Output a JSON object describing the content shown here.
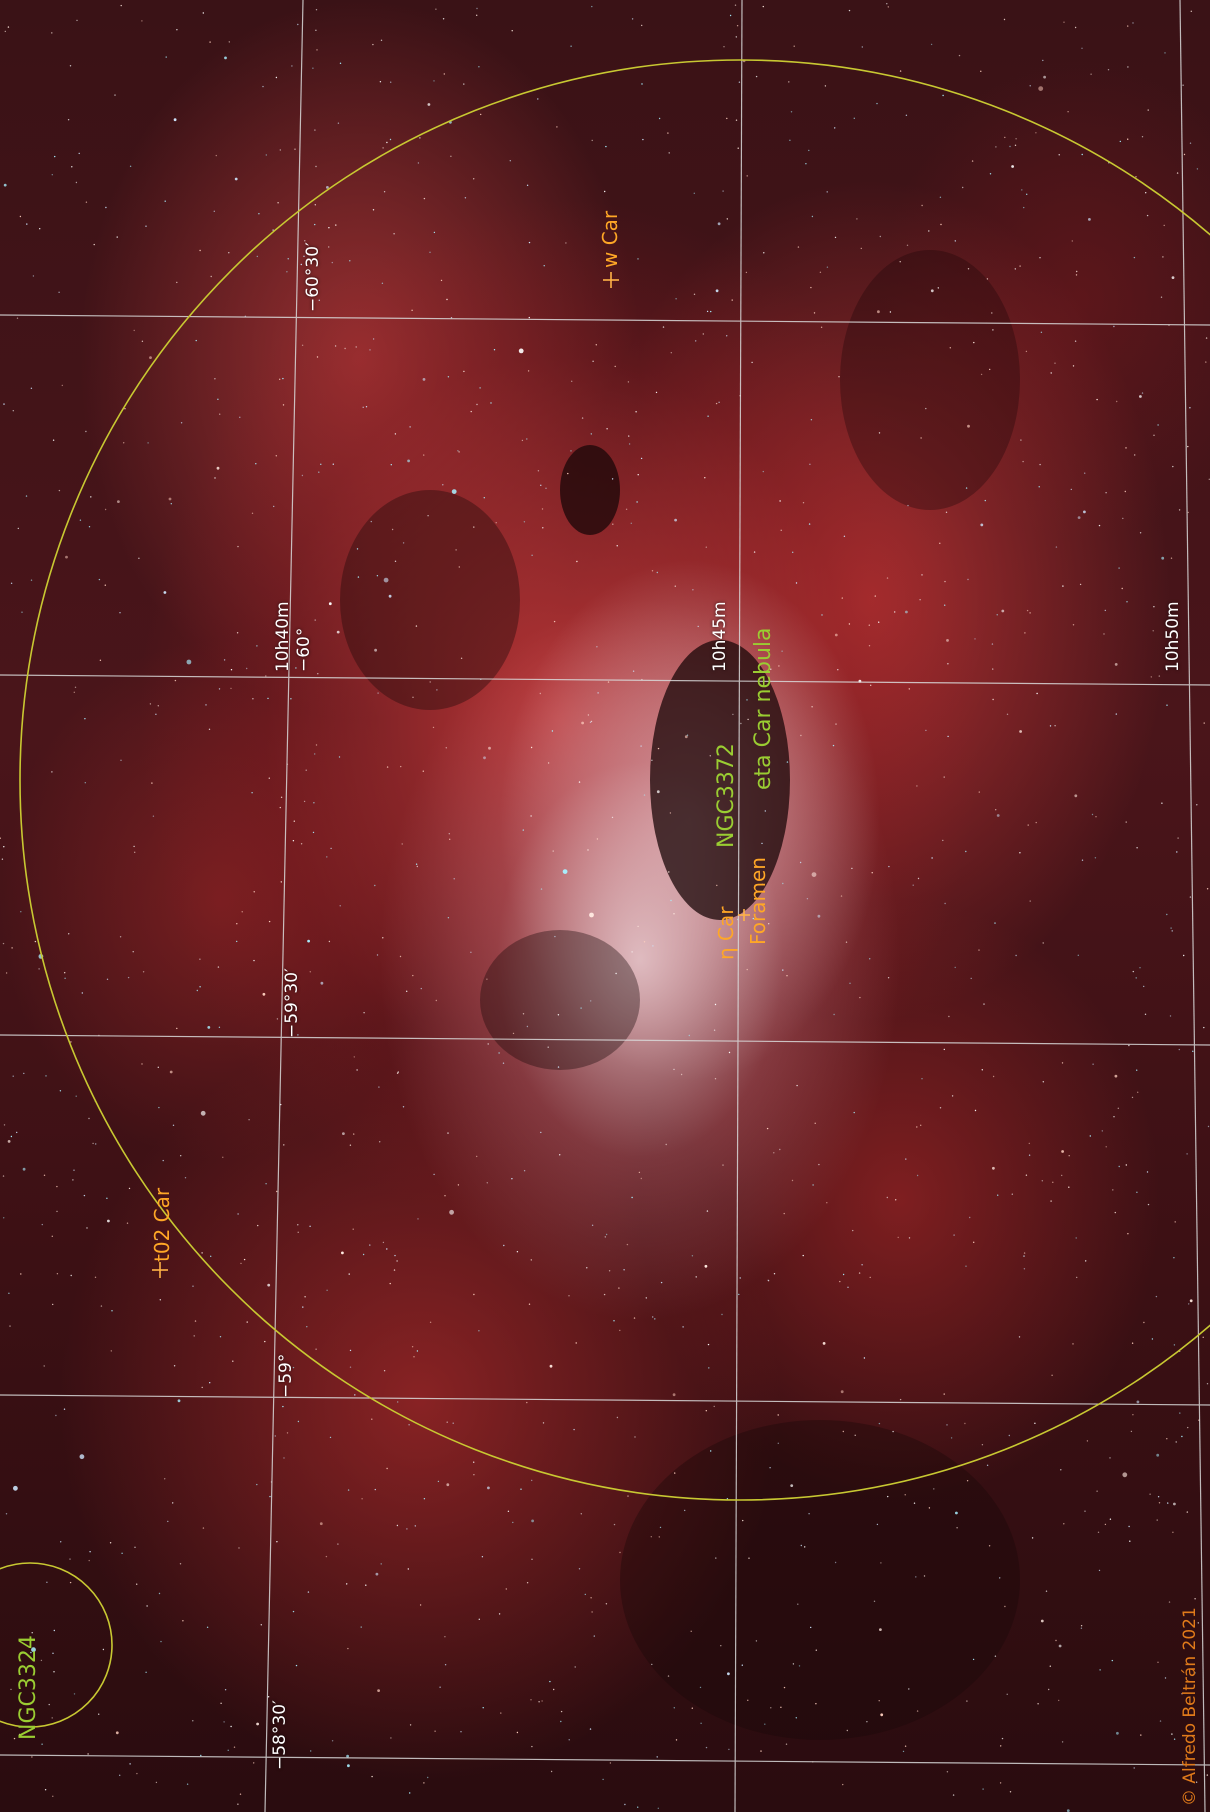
{
  "image": {
    "overlay_colors": {
      "grid": "#d9d9d9",
      "circle": "#c8c832",
      "object_label": "#9acd32",
      "star_label": "#ffa726"
    }
  },
  "grid_labels": {
    "ra_10h40m": "10h40m",
    "ra_10h45m": "10h45m",
    "ra_10h50m": "10h50m",
    "dec_m60": "−60°",
    "dec_m60_30": "−60°30′",
    "dec_m59_30": "−59°30′",
    "dec_m59": "−59°",
    "dec_m58_30": "−58°30′"
  },
  "objects": {
    "ngc3324": "NGC3324",
    "ngc3372": "NGC3372",
    "eta_car_nebula": "eta Car nebula",
    "eta_car": "η Car",
    "foramen": "Foramen",
    "w_car": "w Car",
    "t02_car": "t02 Car"
  },
  "credit": "© Alfredo Beltrán 2021"
}
